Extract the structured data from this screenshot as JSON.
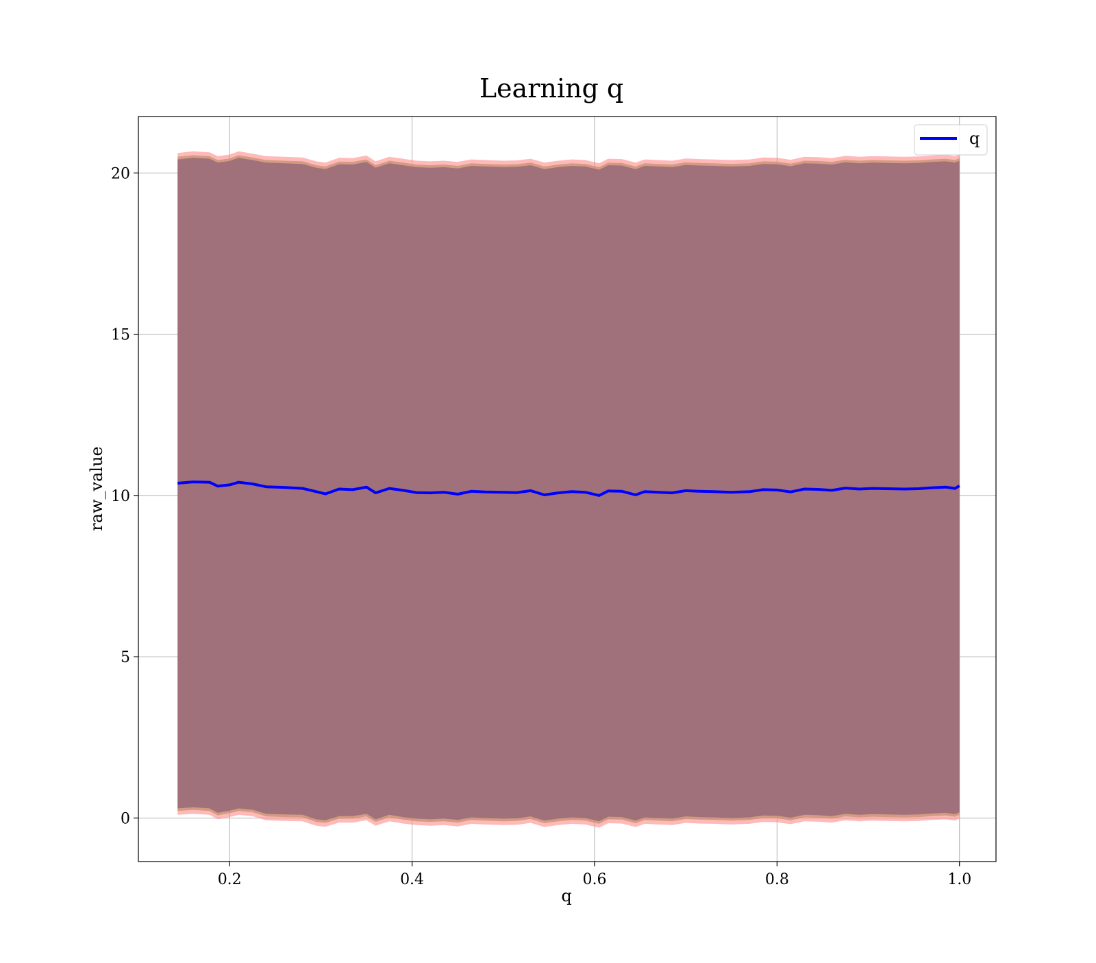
{
  "chart_data": {
    "type": "line",
    "title": "Learning q",
    "xlabel": "q",
    "ylabel": "raw_value",
    "xlim": [
      0.1,
      1.04
    ],
    "ylim": [
      -1.35,
      21.75
    ],
    "x_ticks": [
      0.2,
      0.4,
      0.6,
      0.8,
      1.0
    ],
    "x_tick_labels": [
      "0.2",
      "0.4",
      "0.6",
      "0.8",
      "1.0"
    ],
    "y_ticks": [
      0,
      5,
      10,
      15,
      20
    ],
    "y_tick_labels": [
      "0",
      "5",
      "10",
      "15",
      "20"
    ],
    "grid": true,
    "legend_position": "top-right",
    "series": [
      {
        "name": "q",
        "color": "#0000ff",
        "x": [
          0.143,
          0.16,
          0.178,
          0.187,
          0.2,
          0.21,
          0.225,
          0.24,
          0.26,
          0.28,
          0.295,
          0.305,
          0.32,
          0.335,
          0.35,
          0.36,
          0.375,
          0.39,
          0.405,
          0.42,
          0.435,
          0.45,
          0.465,
          0.48,
          0.5,
          0.515,
          0.53,
          0.545,
          0.56,
          0.575,
          0.59,
          0.605,
          0.615,
          0.63,
          0.645,
          0.655,
          0.67,
          0.685,
          0.7,
          0.715,
          0.73,
          0.75,
          0.77,
          0.785,
          0.8,
          0.815,
          0.83,
          0.845,
          0.86,
          0.875,
          0.89,
          0.905,
          0.92,
          0.94,
          0.955,
          0.97,
          0.985,
          0.995,
          1.0
        ],
        "values": [
          10.38,
          10.42,
          10.41,
          10.29,
          10.33,
          10.41,
          10.36,
          10.27,
          10.25,
          10.22,
          10.12,
          10.05,
          10.2,
          10.18,
          10.26,
          10.08,
          10.22,
          10.16,
          10.09,
          10.08,
          10.1,
          10.04,
          10.13,
          10.11,
          10.1,
          10.09,
          10.15,
          10.02,
          10.08,
          10.12,
          10.1,
          10.0,
          10.14,
          10.13,
          10.02,
          10.12,
          10.1,
          10.08,
          10.15,
          10.13,
          10.12,
          10.1,
          10.12,
          10.18,
          10.17,
          10.11,
          10.2,
          10.19,
          10.16,
          10.23,
          10.2,
          10.22,
          10.21,
          10.2,
          10.21,
          10.24,
          10.26,
          10.22,
          10.3
        ],
        "band_color": "#a0717a",
        "band_lower": [
          0.22,
          0.25,
          0.22,
          0.08,
          0.15,
          0.22,
          0.18,
          0.05,
          0.03,
          0.02,
          -0.12,
          -0.15,
          -0.02,
          -0.02,
          0.05,
          -0.12,
          0.02,
          -0.05,
          -0.1,
          -0.12,
          -0.1,
          -0.14,
          -0.06,
          -0.08,
          -0.1,
          -0.09,
          -0.03,
          -0.16,
          -0.1,
          -0.06,
          -0.08,
          -0.18,
          -0.04,
          -0.05,
          -0.16,
          -0.06,
          -0.08,
          -0.1,
          -0.03,
          -0.05,
          -0.06,
          -0.08,
          -0.06,
          0.0,
          -0.01,
          -0.07,
          0.02,
          0.01,
          -0.02,
          0.05,
          0.02,
          0.04,
          0.03,
          0.02,
          0.03,
          0.06,
          0.08,
          0.04,
          0.1
        ],
        "band_upper": [
          20.5,
          20.55,
          20.52,
          20.4,
          20.45,
          20.55,
          20.48,
          20.4,
          20.38,
          20.36,
          20.24,
          20.2,
          20.35,
          20.34,
          20.42,
          20.24,
          20.38,
          20.32,
          20.26,
          20.24,
          20.26,
          20.22,
          20.3,
          20.28,
          20.26,
          20.27,
          20.32,
          20.2,
          20.26,
          20.3,
          20.28,
          20.18,
          20.32,
          20.31,
          20.2,
          20.3,
          20.28,
          20.26,
          20.33,
          20.31,
          20.3,
          20.28,
          20.3,
          20.36,
          20.35,
          20.29,
          20.38,
          20.37,
          20.34,
          20.41,
          20.38,
          20.4,
          20.39,
          20.38,
          20.39,
          20.42,
          20.44,
          20.4,
          20.46
        ]
      }
    ]
  }
}
